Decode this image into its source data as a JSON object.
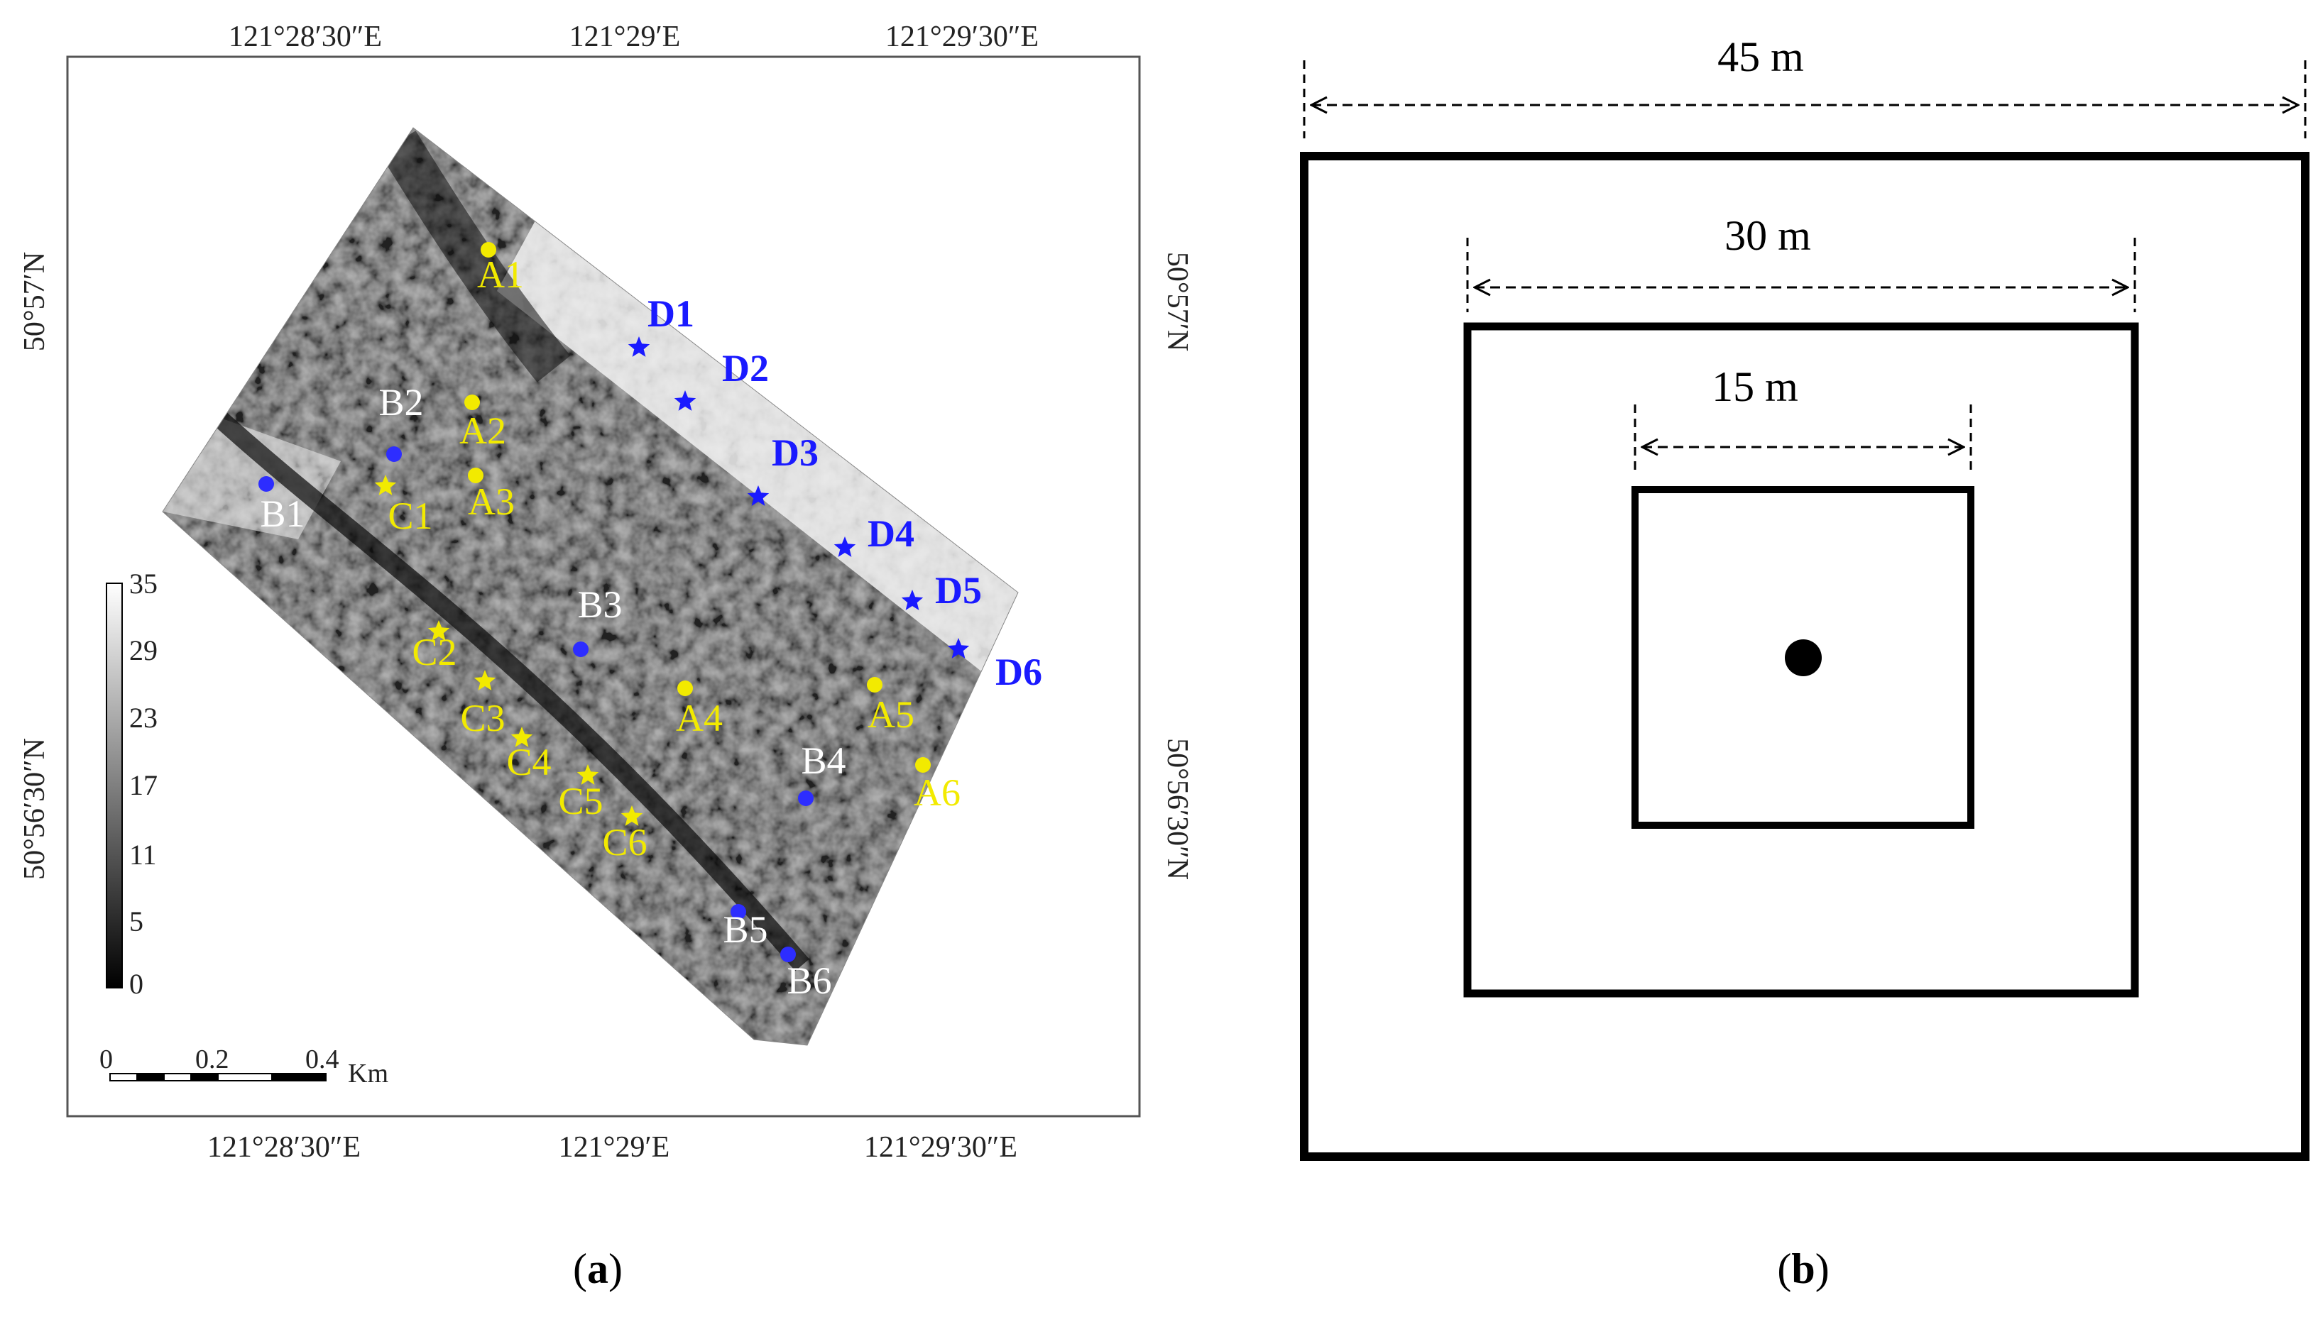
{
  "panel_a": {
    "caption_letter": "a",
    "top_ticks": [
      "121°28′30″E",
      "121°29′E",
      "121°29′30″E"
    ],
    "bottom_ticks": [
      "121°28′30″E",
      "121°29′E",
      "121°29′30″E"
    ],
    "left_ticks": [
      "50°57′N",
      "50°56′30″N"
    ],
    "right_ticks": [
      "50°57′N",
      "50°56′30″N"
    ],
    "colorbar_labels": [
      "35",
      "29",
      "23",
      "17",
      "11",
      "5",
      "0"
    ],
    "scalebar_labels": [
      "0",
      "0.2",
      "0.4"
    ],
    "scalebar_unit": "Km",
    "colors": {
      "A": "#f2ea00",
      "B": "#2d2dff",
      "C": "#f2ea00",
      "D": "#1a1aff"
    },
    "sites": [
      {
        "id": "A1",
        "group": "A",
        "marker": "dot"
      },
      {
        "id": "A2",
        "group": "A",
        "marker": "dot"
      },
      {
        "id": "A3",
        "group": "A",
        "marker": "dot"
      },
      {
        "id": "A4",
        "group": "A",
        "marker": "dot"
      },
      {
        "id": "A5",
        "group": "A",
        "marker": "dot"
      },
      {
        "id": "A6",
        "group": "A",
        "marker": "dot"
      },
      {
        "id": "B1",
        "group": "B",
        "marker": "dot"
      },
      {
        "id": "B2",
        "group": "B",
        "marker": "dot"
      },
      {
        "id": "B3",
        "group": "B",
        "marker": "dot"
      },
      {
        "id": "B4",
        "group": "B",
        "marker": "dot"
      },
      {
        "id": "B5",
        "group": "B",
        "marker": "dot"
      },
      {
        "id": "B6",
        "group": "B",
        "marker": "dot"
      },
      {
        "id": "C1",
        "group": "C",
        "marker": "star"
      },
      {
        "id": "C2",
        "group": "C",
        "marker": "star"
      },
      {
        "id": "C3",
        "group": "C",
        "marker": "star"
      },
      {
        "id": "C4",
        "group": "C",
        "marker": "star"
      },
      {
        "id": "C5",
        "group": "C",
        "marker": "star"
      },
      {
        "id": "C6",
        "group": "C",
        "marker": "star"
      },
      {
        "id": "D1",
        "group": "D",
        "marker": "star"
      },
      {
        "id": "D2",
        "group": "D",
        "marker": "star"
      },
      {
        "id": "D3",
        "group": "D",
        "marker": "star"
      },
      {
        "id": "D4",
        "group": "D",
        "marker": "star"
      },
      {
        "id": "D5",
        "group": "D",
        "marker": "star"
      },
      {
        "id": "D6",
        "group": "D",
        "marker": "star"
      }
    ]
  },
  "panel_b": {
    "caption_letter": "b",
    "squares": [
      {
        "size_label": "45 m"
      },
      {
        "size_label": "30 m"
      },
      {
        "size_label": "15 m"
      }
    ]
  }
}
